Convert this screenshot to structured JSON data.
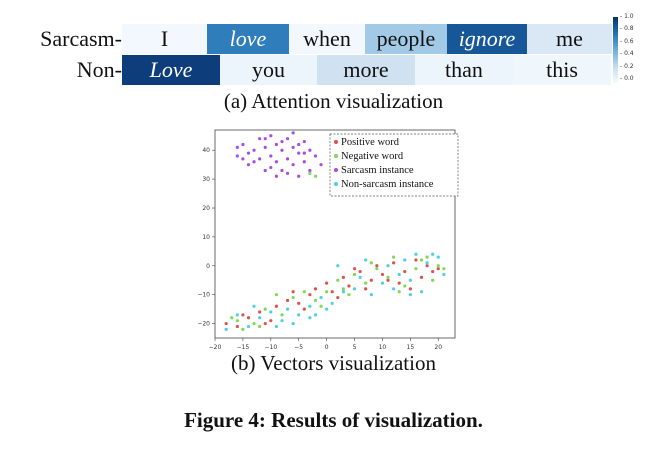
{
  "attention": {
    "rows": [
      {
        "label": "Sarcasm-",
        "cells": [
          {
            "word": "I",
            "weight": 0.02,
            "italic": false,
            "width": 85
          },
          {
            "word": "love",
            "weight": 0.7,
            "italic": true,
            "width": 82
          },
          {
            "word": "when",
            "weight": 0.02,
            "italic": false,
            "width": 76
          },
          {
            "word": "people",
            "weight": 0.35,
            "italic": false,
            "width": 82
          },
          {
            "word": "ignore",
            "weight": 0.85,
            "italic": true,
            "width": 80
          },
          {
            "word": "me",
            "weight": 0.15,
            "italic": false,
            "width": 85
          }
        ]
      },
      {
        "label": "Non-",
        "cells": [
          {
            "word": "Love",
            "weight": 0.95,
            "italic": true,
            "width": 98
          },
          {
            "word": "you",
            "weight": 0.05,
            "italic": false,
            "width": 97
          },
          {
            "word": "more",
            "weight": 0.2,
            "italic": false,
            "width": 98
          },
          {
            "word": "than",
            "weight": 0.05,
            "italic": false,
            "width": 98
          },
          {
            "word": "this",
            "weight": 0.04,
            "italic": false,
            "width": 98
          }
        ]
      }
    ],
    "colorbar_ticks": [
      "1.0",
      "0.8",
      "0.6",
      "0.4",
      "0.2",
      "0.0"
    ],
    "caption": "(a) Attention visualization"
  },
  "scatter": {
    "caption": "(b) Vectors visualization",
    "legend": [
      {
        "label": "Positive word",
        "color": "#d9534f"
      },
      {
        "label": "Negative word",
        "color": "#7ed957"
      },
      {
        "label": "Sarcasm instance",
        "color": "#a64ee0"
      },
      {
        "label": "Non-sarcasm instance",
        "color": "#4dd0e1"
      }
    ]
  },
  "figure_caption": "Figure 4: Results of visualization.",
  "chart_data": {
    "type": "scatter",
    "title": "",
    "xlabel": "",
    "ylabel": "",
    "xlim": [
      -20,
      23
    ],
    "ylim": [
      -25,
      47
    ],
    "x_ticks": [
      "−20",
      "−15",
      "−10",
      "−5",
      "0",
      "5",
      "10",
      "15",
      "20"
    ],
    "y_ticks": [
      "−20",
      "−10",
      "0",
      "10",
      "20",
      "30",
      "40"
    ],
    "legend_position": "top-right",
    "series": [
      {
        "name": "Positive word",
        "color": "#d9534f",
        "points": [
          [
            -18,
            -20
          ],
          [
            -16,
            -21
          ],
          [
            -14,
            -18
          ],
          [
            -12,
            -16
          ],
          [
            -10,
            -19
          ],
          [
            -9,
            -14
          ],
          [
            -7,
            -12
          ],
          [
            -5,
            -13
          ],
          [
            -3,
            -10
          ],
          [
            -2,
            -8
          ],
          [
            0,
            -6
          ],
          [
            1,
            -9
          ],
          [
            3,
            -4
          ],
          [
            4,
            -7
          ],
          [
            6,
            -2
          ],
          [
            8,
            -5
          ],
          [
            9,
            0
          ],
          [
            10,
            -3
          ],
          [
            12,
            1
          ],
          [
            13,
            -6
          ],
          [
            14,
            -2
          ],
          [
            16,
            2
          ],
          [
            17,
            -4
          ],
          [
            18,
            0
          ],
          [
            19,
            -2
          ],
          [
            -15,
            -17
          ],
          [
            -11,
            -20
          ],
          [
            -6,
            -9
          ],
          [
            -4,
            -15
          ],
          [
            2,
            -11
          ],
          [
            5,
            -1
          ],
          [
            7,
            -8
          ],
          [
            11,
            -5
          ],
          [
            15,
            -8
          ],
          [
            20,
            -1
          ]
        ]
      },
      {
        "name": "Negative word",
        "color": "#7ed957",
        "points": [
          [
            -17,
            -18
          ],
          [
            -15,
            -22
          ],
          [
            -13,
            -20
          ],
          [
            -11,
            -15
          ],
          [
            -8,
            -17
          ],
          [
            -6,
            -11
          ],
          [
            -4,
            -9
          ],
          [
            -2,
            -12
          ],
          [
            0,
            -9
          ],
          [
            2,
            -5
          ],
          [
            4,
            -10
          ],
          [
            5,
            -3
          ],
          [
            7,
            -6
          ],
          [
            9,
            -1
          ],
          [
            11,
            -4
          ],
          [
            12,
            3
          ],
          [
            14,
            -7
          ],
          [
            16,
            -1
          ],
          [
            18,
            3
          ],
          [
            20,
            0
          ],
          [
            21,
            -1
          ],
          [
            -16,
            -19
          ],
          [
            -12,
            -21
          ],
          [
            -9,
            -10
          ],
          [
            -1,
            -14
          ],
          [
            3,
            -8
          ],
          [
            8,
            1
          ],
          [
            13,
            -9
          ],
          [
            17,
            2
          ],
          [
            19,
            -5
          ],
          [
            -2,
            31
          ],
          [
            -3,
            32
          ]
        ]
      },
      {
        "name": "Sarcasm instance",
        "color": "#a64ee0",
        "points": [
          [
            -16,
            38
          ],
          [
            -15,
            42
          ],
          [
            -14,
            35
          ],
          [
            -13,
            40
          ],
          [
            -12,
            44
          ],
          [
            -12,
            37
          ],
          [
            -11,
            33
          ],
          [
            -11,
            41
          ],
          [
            -10,
            38
          ],
          [
            -10,
            45
          ],
          [
            -9,
            36
          ],
          [
            -9,
            42
          ],
          [
            -8,
            33
          ],
          [
            -8,
            40
          ],
          [
            -7,
            44
          ],
          [
            -7,
            37
          ],
          [
            -6,
            35
          ],
          [
            -6,
            41
          ],
          [
            -5,
            39
          ],
          [
            -5,
            31
          ],
          [
            -4,
            43
          ],
          [
            -4,
            36
          ],
          [
            -3,
            40
          ],
          [
            -3,
            33
          ],
          [
            -2,
            38
          ],
          [
            -1,
            35
          ],
          [
            -14,
            39
          ],
          [
            -13,
            36
          ],
          [
            -9,
            31
          ],
          [
            -6,
            46
          ],
          [
            -16,
            41
          ],
          [
            -10,
            34
          ],
          [
            -8,
            43
          ],
          [
            -4,
            39
          ],
          [
            -11,
            44
          ],
          [
            -7,
            32
          ],
          [
            -15,
            37
          ],
          [
            -5,
            42
          ]
        ]
      },
      {
        "name": "Non-sarcasm instance",
        "color": "#4dd0e1",
        "points": [
          [
            -18,
            -22
          ],
          [
            -16,
            -17
          ],
          [
            -14,
            -21
          ],
          [
            -12,
            -18
          ],
          [
            -10,
            -16
          ],
          [
            -9,
            -21
          ],
          [
            -7,
            -15
          ],
          [
            -5,
            -17
          ],
          [
            -3,
            -14
          ],
          [
            -1,
            -11
          ],
          [
            1,
            -13
          ],
          [
            3,
            -9
          ],
          [
            5,
            -8
          ],
          [
            6,
            -4
          ],
          [
            8,
            -10
          ],
          [
            10,
            -6
          ],
          [
            11,
            0
          ],
          [
            13,
            -3
          ],
          [
            14,
            2
          ],
          [
            15,
            -5
          ],
          [
            16,
            4
          ],
          [
            17,
            -9
          ],
          [
            18,
            1
          ],
          [
            19,
            4
          ],
          [
            21,
            -3
          ],
          [
            -13,
            -14
          ],
          [
            -8,
            -19
          ],
          [
            -6,
            -20
          ],
          [
            -2,
            -17
          ],
          [
            0,
            -15
          ],
          [
            2,
            0
          ],
          [
            7,
            2
          ],
          [
            12,
            -8
          ],
          [
            15,
            -10
          ],
          [
            20,
            3
          ],
          [
            -3,
            -18
          ]
        ]
      }
    ]
  }
}
